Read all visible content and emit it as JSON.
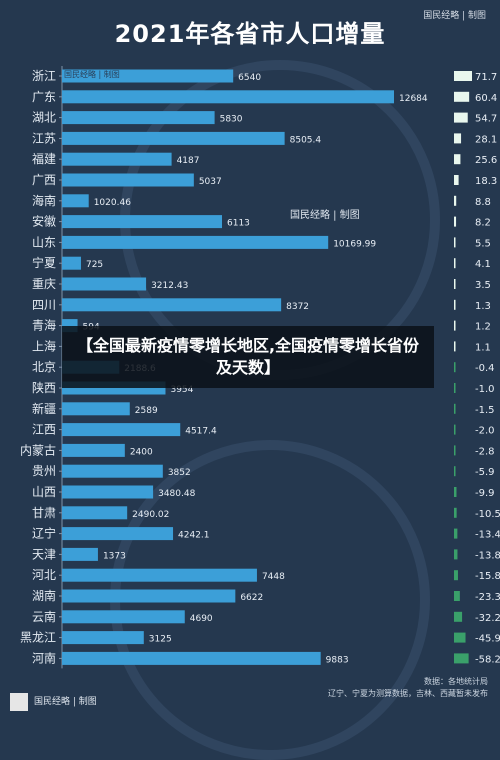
{
  "title": "2021年各省市人口增量",
  "brand": "国民经略 | 制图",
  "overlay_text": "【全国最新疫情零增长地区,全国疫情零增长省份及天数】",
  "source_line1": "数据：各地统计局",
  "source_line2": "辽宁、宁夏为测算数据，吉林、西藏暂未发布",
  "colors": {
    "bar": "#3c9fd8",
    "right_bar_pos": "#e9f7ee",
    "right_bar_neg": "#3aa06a"
  },
  "chart_data": [
    {
      "type": "bar",
      "orientation": "horizontal",
      "categories": [
        "浙江",
        "广东",
        "湖北",
        "江苏",
        "福建",
        "广西",
        "海南",
        "安徽",
        "山东",
        "宁夏",
        "重庆",
        "四川",
        "青海",
        "上海",
        "北京",
        "陕西",
        "新疆",
        "江西",
        "内蒙古",
        "贵州",
        "山西",
        "甘肃",
        "辽宁",
        "天津",
        "河北",
        "湖南",
        "云南",
        "黑龙江",
        "河南"
      ],
      "values": [
        6540,
        12684,
        5830,
        8505.4,
        4187,
        5037,
        1020.46,
        6113,
        10169.99,
        725,
        3212.43,
        8372,
        594,
        null,
        2188.6,
        3954,
        2589,
        4517.4,
        2400,
        3852,
        3480.48,
        2490.02,
        4242.1,
        1373,
        7448,
        6622,
        4690,
        3125,
        9883
      ],
      "value_labels": [
        "6540",
        "12684",
        "5830",
        "8505.4",
        "4187",
        "5037",
        "1020.46",
        "6113",
        "10169.99",
        "725",
        "3212.43",
        "8372",
        "594",
        "",
        "2188.6",
        "3954",
        "2589",
        "4517.4",
        "2400",
        "3852",
        "3480.48",
        "2490.02",
        "4242.1",
        "1373",
        "7448",
        "6622",
        "4690",
        "3125",
        "9883"
      ],
      "xlim": [
        0,
        12684
      ]
    },
    {
      "type": "bar",
      "orientation": "horizontal",
      "categories": [
        "浙江",
        "广东",
        "湖北",
        "江苏",
        "福建",
        "广西",
        "海南",
        "安徽",
        "山东",
        "宁夏",
        "重庆",
        "四川",
        "青海",
        "上海",
        "北京",
        "陕西",
        "新疆",
        "江西",
        "内蒙古",
        "贵州",
        "山西",
        "甘肃",
        "辽宁",
        "天津",
        "河北",
        "湖南",
        "云南",
        "黑龙江",
        "河南"
      ],
      "values": [
        71.7,
        60.4,
        54.7,
        28.1,
        25.6,
        18.3,
        8.8,
        8.2,
        5.5,
        4.1,
        3.5,
        1.3,
        1.2,
        1.1,
        -0.4,
        -1.0,
        -1.5,
        -2.0,
        -2.8,
        -5.9,
        -9.9,
        -10.5,
        -13.4,
        -13.8,
        -15.8,
        -23.3,
        -32.2,
        -45.9,
        -58.2
      ],
      "value_labels": [
        "71.7",
        "60.4",
        "54.7",
        "28.1",
        "25.6",
        "18.3",
        "8.8",
        "8.2",
        "5.5",
        "4.1",
        "3.5",
        "1.3",
        "1.2",
        "1.1",
        "-0.4",
        "-1.0",
        "-1.5",
        "-2.0",
        "-2.8",
        "-5.9",
        "-9.9",
        "-10.5",
        "-13.4",
        "-13.8",
        "-15.8",
        "-23.3",
        "-32.2",
        "-45.9",
        "-58.2"
      ],
      "xlim": [
        -71.7,
        71.7
      ]
    }
  ]
}
